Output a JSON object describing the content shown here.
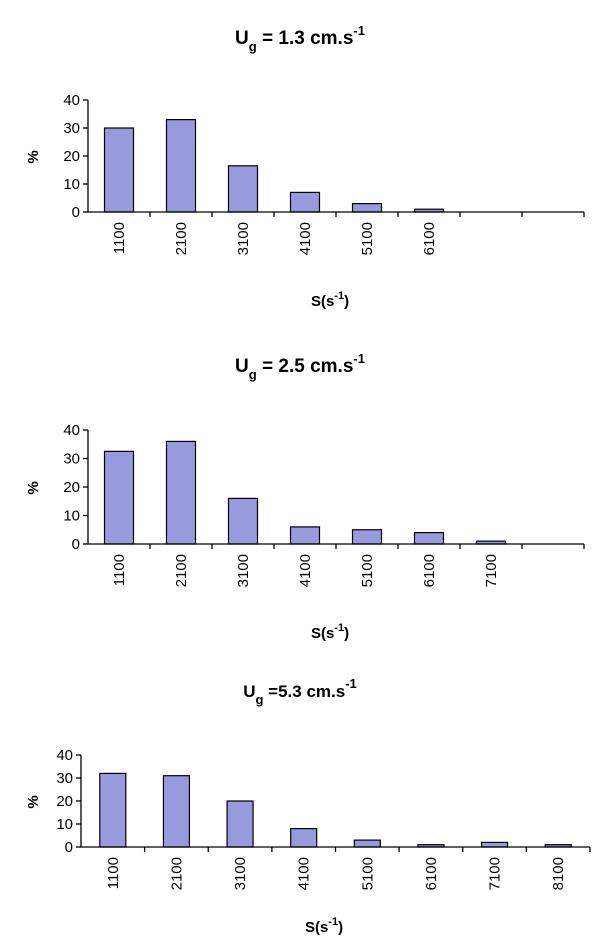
{
  "chart_data": [
    {
      "type": "bar",
      "title_main": "U",
      "title_sub": "g",
      "title_rest": " = 1.3 cm.s",
      "title_sup": "-1",
      "ylabel": "%",
      "xlabel_main": "S(s",
      "xlabel_sup": "-1",
      "xlabel_end": ")",
      "ylim": [
        0,
        40
      ],
      "yticks": [
        "0",
        "10",
        "20",
        "30",
        "40"
      ],
      "categories": [
        "1100",
        "2100",
        "3100",
        "4100",
        "5100",
        "6100",
        "",
        ""
      ],
      "values": [
        30,
        33,
        16.5,
        7,
        3,
        1,
        0,
        0
      ],
      "bar_color": "#9999dd"
    },
    {
      "type": "bar",
      "title_main": "U",
      "title_sub": "g",
      "title_rest": " = 2.5 cm.s",
      "title_sup": "-1",
      "ylabel": "%",
      "xlabel_main": "S(s",
      "xlabel_sup": "-1",
      "xlabel_end": ")",
      "ylim": [
        0,
        40
      ],
      "yticks": [
        "0",
        "10",
        "20",
        "30",
        "40"
      ],
      "categories": [
        "1100",
        "2100",
        "3100",
        "4100",
        "5100",
        "6100",
        "7100",
        ""
      ],
      "values": [
        32.5,
        36,
        16,
        6,
        5,
        4,
        1,
        0
      ],
      "bar_color": "#9999dd"
    },
    {
      "type": "bar",
      "title_main": "U",
      "title_sub": "g",
      "title_rest": " =5.3 cm.s",
      "title_sup": "-1",
      "ylabel": "%",
      "xlabel_main": "S(s",
      "xlabel_sup": "-1",
      "xlabel_end": ")",
      "ylim": [
        0,
        40
      ],
      "yticks": [
        "0",
        "10",
        "20",
        "30",
        "40"
      ],
      "categories": [
        "1100",
        "2100",
        "3100",
        "4100",
        "5100",
        "6100",
        "7100",
        "8100"
      ],
      "values": [
        32,
        31,
        20,
        8,
        3,
        1,
        2,
        1
      ],
      "bar_color": "#9999dd"
    }
  ]
}
